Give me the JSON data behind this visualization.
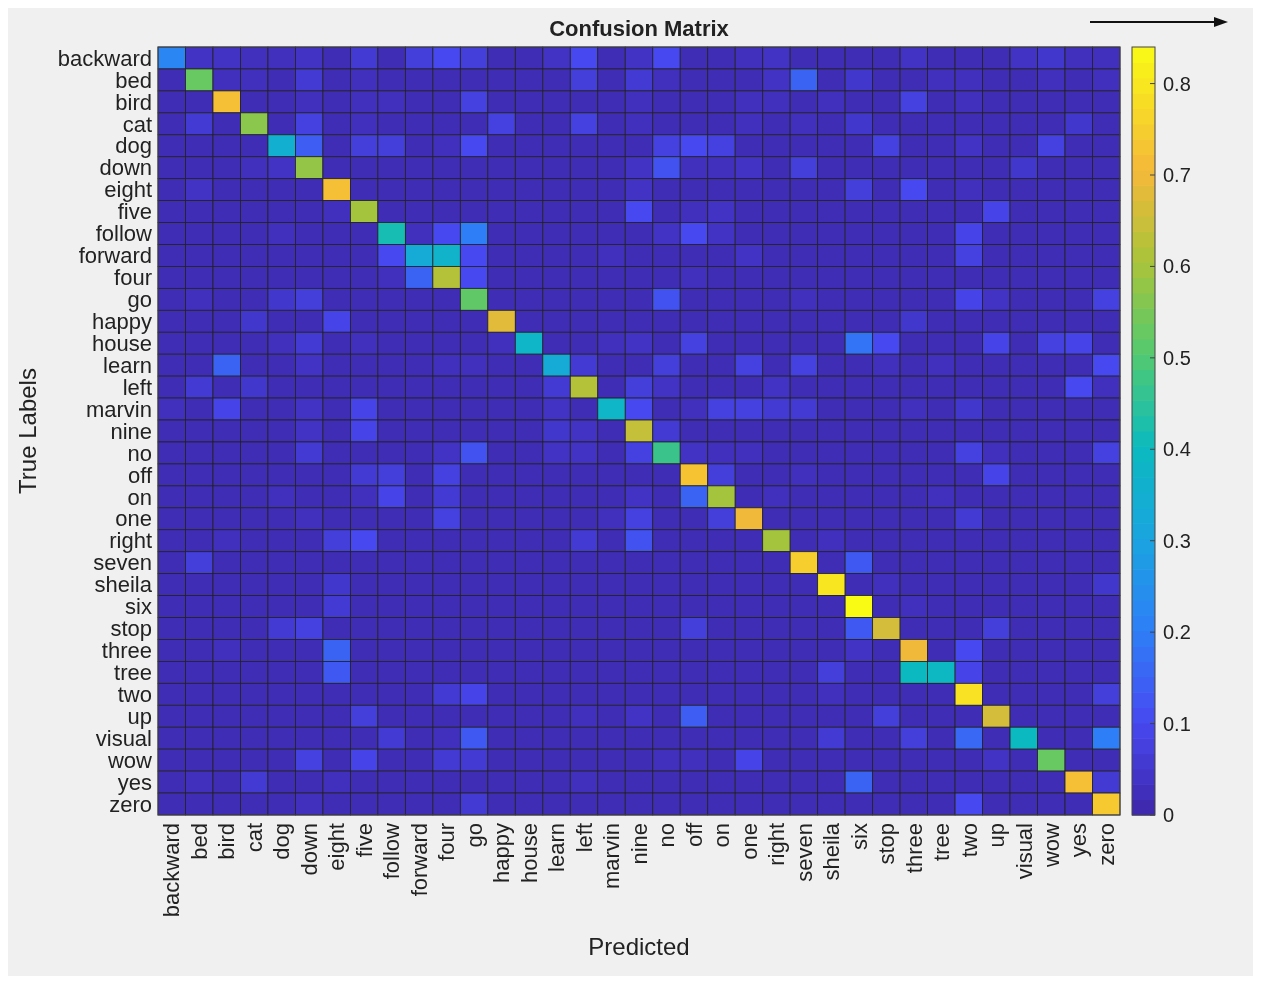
{
  "chart_data": {
    "type": "heatmap",
    "title": "Confusion Matrix",
    "xlabel": "Predicted",
    "ylabel": "True Labels",
    "categories": [
      "backward",
      "bed",
      "bird",
      "cat",
      "dog",
      "down",
      "eight",
      "five",
      "follow",
      "forward",
      "four",
      "go",
      "happy",
      "house",
      "learn",
      "left",
      "marvin",
      "nine",
      "no",
      "off",
      "on",
      "one",
      "right",
      "seven",
      "sheila",
      "six",
      "stop",
      "three",
      "tree",
      "two",
      "up",
      "visual",
      "wow",
      "yes",
      "zero"
    ],
    "y_categories": [
      "backward",
      "bed",
      "bird",
      "cat",
      "dog",
      "down",
      "eight",
      "five",
      "follow",
      "forward",
      "four",
      "go",
      "happy",
      "house",
      "learn",
      "left",
      "marvin",
      "nine",
      "no",
      "off",
      "on",
      "one",
      "right",
      "seven",
      "sheila",
      "six",
      "stop",
      "three",
      "tree",
      "two",
      "up",
      "visual",
      "wow",
      "yes",
      "zero"
    ],
    "clim": [
      0,
      0.84
    ],
    "cticks": [
      0,
      0.1,
      0.2,
      0.3,
      0.4,
      0.5,
      0.6,
      0.7,
      0.8
    ],
    "cells": [
      [
        0.22,
        0.04,
        0.04,
        0.03,
        0.03,
        0.04,
        0.02,
        0.06,
        0.02,
        0.07,
        0.1,
        0.07,
        0.02,
        0.02,
        0.04,
        0.1,
        0.02,
        0.04,
        0.1,
        0.02,
        0.02,
        0.03,
        0.04,
        0.02,
        0.02,
        0.02,
        0.02,
        0.04,
        0.02,
        0.02,
        0.02,
        0.04,
        0.05,
        0.03,
        0.03
      ],
      [
        0.02,
        0.53,
        0.03,
        0.03,
        0.02,
        0.06,
        0.02,
        0.03,
        0.02,
        0.02,
        0.02,
        0.02,
        0.02,
        0.02,
        0.02,
        0.07,
        0.02,
        0.06,
        0.03,
        0.02,
        0.02,
        0.02,
        0.04,
        0.15,
        0.02,
        0.05,
        0.02,
        0.02,
        0.03,
        0.03,
        0.02,
        0.02,
        0.03,
        0.02,
        0.03
      ],
      [
        0.02,
        0.02,
        0.72,
        0.02,
        0.02,
        0.03,
        0.02,
        0.03,
        0.03,
        0.02,
        0.02,
        0.08,
        0.02,
        0.02,
        0.02,
        0.02,
        0.02,
        0.03,
        0.02,
        0.02,
        0.02,
        0.03,
        0.03,
        0.02,
        0.03,
        0.02,
        0.02,
        0.08,
        0.02,
        0.03,
        0.02,
        0.02,
        0.02,
        0.02,
        0.02
      ],
      [
        0.02,
        0.06,
        0.02,
        0.57,
        0.02,
        0.08,
        0.02,
        0.03,
        0.02,
        0.02,
        0.02,
        0.02,
        0.08,
        0.02,
        0.02,
        0.08,
        0.02,
        0.03,
        0.02,
        0.02,
        0.02,
        0.03,
        0.02,
        0.03,
        0.02,
        0.05,
        0.02,
        0.02,
        0.02,
        0.02,
        0.02,
        0.02,
        0.02,
        0.05,
        0.02
      ],
      [
        0.02,
        0.02,
        0.02,
        0.02,
        0.35,
        0.14,
        0.02,
        0.07,
        0.07,
        0.02,
        0.03,
        0.1,
        0.02,
        0.02,
        0.02,
        0.02,
        0.02,
        0.02,
        0.08,
        0.1,
        0.08,
        0.02,
        0.02,
        0.02,
        0.02,
        0.02,
        0.08,
        0.02,
        0.02,
        0.04,
        0.02,
        0.02,
        0.08,
        0.02,
        0.02
      ],
      [
        0.02,
        0.02,
        0.02,
        0.03,
        0.04,
        0.58,
        0.02,
        0.02,
        0.02,
        0.02,
        0.02,
        0.02,
        0.02,
        0.02,
        0.02,
        0.02,
        0.02,
        0.04,
        0.12,
        0.03,
        0.03,
        0.04,
        0.02,
        0.07,
        0.02,
        0.02,
        0.02,
        0.02,
        0.02,
        0.02,
        0.02,
        0.05,
        0.02,
        0.02,
        0.02
      ],
      [
        0.02,
        0.04,
        0.02,
        0.02,
        0.02,
        0.02,
        0.72,
        0.02,
        0.02,
        0.02,
        0.02,
        0.02,
        0.02,
        0.02,
        0.02,
        0.02,
        0.02,
        0.04,
        0.02,
        0.02,
        0.02,
        0.02,
        0.02,
        0.02,
        0.02,
        0.07,
        0.02,
        0.1,
        0.02,
        0.03,
        0.02,
        0.02,
        0.02,
        0.02,
        0.02
      ],
      [
        0.02,
        0.02,
        0.02,
        0.02,
        0.02,
        0.02,
        0.03,
        0.6,
        0.02,
        0.02,
        0.02,
        0.02,
        0.02,
        0.02,
        0.02,
        0.02,
        0.02,
        0.1,
        0.02,
        0.03,
        0.04,
        0.02,
        0.02,
        0.02,
        0.02,
        0.02,
        0.02,
        0.02,
        0.02,
        0.02,
        0.09,
        0.02,
        0.02,
        0.02,
        0.02
      ],
      [
        0.02,
        0.02,
        0.02,
        0.02,
        0.03,
        0.02,
        0.02,
        0.02,
        0.42,
        0.03,
        0.1,
        0.2,
        0.02,
        0.02,
        0.02,
        0.02,
        0.02,
        0.02,
        0.04,
        0.1,
        0.04,
        0.02,
        0.02,
        0.02,
        0.02,
        0.02,
        0.02,
        0.02,
        0.02,
        0.09,
        0.02,
        0.02,
        0.02,
        0.02,
        0.02
      ],
      [
        0.02,
        0.02,
        0.02,
        0.02,
        0.02,
        0.02,
        0.02,
        0.02,
        0.1,
        0.33,
        0.37,
        0.1,
        0.02,
        0.02,
        0.02,
        0.02,
        0.03,
        0.02,
        0.02,
        0.02,
        0.02,
        0.04,
        0.02,
        0.02,
        0.02,
        0.02,
        0.02,
        0.02,
        0.02,
        0.08,
        0.02,
        0.02,
        0.02,
        0.02,
        0.02
      ],
      [
        0.02,
        0.02,
        0.02,
        0.02,
        0.02,
        0.02,
        0.02,
        0.02,
        0.03,
        0.15,
        0.62,
        0.1,
        0.02,
        0.02,
        0.02,
        0.02,
        0.02,
        0.02,
        0.02,
        0.03,
        0.02,
        0.02,
        0.02,
        0.02,
        0.02,
        0.02,
        0.02,
        0.02,
        0.02,
        0.02,
        0.02,
        0.02,
        0.02,
        0.02,
        0.02
      ],
      [
        0.02,
        0.03,
        0.02,
        0.02,
        0.05,
        0.07,
        0.02,
        0.02,
        0.02,
        0.02,
        0.02,
        0.52,
        0.02,
        0.02,
        0.02,
        0.02,
        0.02,
        0.02,
        0.12,
        0.02,
        0.02,
        0.02,
        0.02,
        0.03,
        0.02,
        0.02,
        0.02,
        0.02,
        0.02,
        0.09,
        0.04,
        0.02,
        0.02,
        0.02,
        0.08
      ],
      [
        0.02,
        0.02,
        0.02,
        0.05,
        0.02,
        0.02,
        0.09,
        0.02,
        0.02,
        0.02,
        0.02,
        0.02,
        0.68,
        0.02,
        0.02,
        0.02,
        0.02,
        0.02,
        0.02,
        0.02,
        0.02,
        0.02,
        0.02,
        0.02,
        0.02,
        0.02,
        0.02,
        0.05,
        0.02,
        0.02,
        0.02,
        0.02,
        0.02,
        0.02,
        0.02
      ],
      [
        0.02,
        0.02,
        0.02,
        0.02,
        0.03,
        0.06,
        0.02,
        0.03,
        0.02,
        0.02,
        0.02,
        0.02,
        0.03,
        0.38,
        0.02,
        0.02,
        0.03,
        0.04,
        0.02,
        0.08,
        0.02,
        0.02,
        0.02,
        0.02,
        0.02,
        0.18,
        0.1,
        0.02,
        0.02,
        0.02,
        0.09,
        0.02,
        0.08,
        0.09,
        0.02
      ],
      [
        0.02,
        0.02,
        0.15,
        0.02,
        0.02,
        0.04,
        0.02,
        0.02,
        0.02,
        0.02,
        0.03,
        0.03,
        0.02,
        0.02,
        0.33,
        0.06,
        0.02,
        0.02,
        0.07,
        0.02,
        0.02,
        0.08,
        0.02,
        0.08,
        0.02,
        0.02,
        0.03,
        0.02,
        0.03,
        0.02,
        0.02,
        0.02,
        0.02,
        0.02,
        0.1
      ],
      [
        0.02,
        0.06,
        0.02,
        0.05,
        0.02,
        0.02,
        0.02,
        0.02,
        0.02,
        0.02,
        0.02,
        0.02,
        0.02,
        0.02,
        0.06,
        0.62,
        0.02,
        0.07,
        0.04,
        0.02,
        0.02,
        0.02,
        0.04,
        0.02,
        0.02,
        0.02,
        0.02,
        0.02,
        0.02,
        0.02,
        0.02,
        0.02,
        0.02,
        0.1,
        0.03
      ],
      [
        0.03,
        0.02,
        0.09,
        0.02,
        0.02,
        0.04,
        0.02,
        0.09,
        0.02,
        0.02,
        0.02,
        0.02,
        0.02,
        0.02,
        0.04,
        0.02,
        0.38,
        0.1,
        0.02,
        0.03,
        0.08,
        0.08,
        0.06,
        0.06,
        0.02,
        0.02,
        0.02,
        0.03,
        0.02,
        0.05,
        0.02,
        0.02,
        0.02,
        0.02,
        0.02
      ],
      [
        0.02,
        0.02,
        0.02,
        0.02,
        0.02,
        0.04,
        0.02,
        0.09,
        0.02,
        0.02,
        0.02,
        0.02,
        0.02,
        0.02,
        0.05,
        0.04,
        0.02,
        0.64,
        0.06,
        0.02,
        0.02,
        0.02,
        0.02,
        0.02,
        0.02,
        0.02,
        0.02,
        0.02,
        0.02,
        0.02,
        0.02,
        0.02,
        0.02,
        0.02,
        0.02
      ],
      [
        0.02,
        0.02,
        0.02,
        0.02,
        0.02,
        0.06,
        0.02,
        0.02,
        0.02,
        0.02,
        0.04,
        0.12,
        0.02,
        0.02,
        0.04,
        0.04,
        0.02,
        0.08,
        0.47,
        0.04,
        0.03,
        0.03,
        0.02,
        0.02,
        0.02,
        0.02,
        0.02,
        0.02,
        0.02,
        0.08,
        0.03,
        0.02,
        0.02,
        0.02,
        0.08
      ],
      [
        0.02,
        0.02,
        0.02,
        0.02,
        0.02,
        0.02,
        0.02,
        0.06,
        0.07,
        0.02,
        0.08,
        0.02,
        0.02,
        0.02,
        0.02,
        0.02,
        0.02,
        0.02,
        0.02,
        0.73,
        0.07,
        0.02,
        0.02,
        0.03,
        0.02,
        0.02,
        0.02,
        0.02,
        0.02,
        0.02,
        0.09,
        0.02,
        0.02,
        0.02,
        0.02
      ],
      [
        0.02,
        0.02,
        0.02,
        0.02,
        0.03,
        0.02,
        0.02,
        0.03,
        0.09,
        0.02,
        0.06,
        0.02,
        0.02,
        0.02,
        0.02,
        0.02,
        0.02,
        0.04,
        0.02,
        0.15,
        0.6,
        0.02,
        0.03,
        0.02,
        0.02,
        0.02,
        0.02,
        0.02,
        0.03,
        0.02,
        0.02,
        0.02,
        0.02,
        0.02,
        0.02
      ],
      [
        0.02,
        0.02,
        0.02,
        0.02,
        0.02,
        0.03,
        0.02,
        0.02,
        0.02,
        0.02,
        0.08,
        0.02,
        0.02,
        0.02,
        0.02,
        0.02,
        0.03,
        0.08,
        0.02,
        0.02,
        0.07,
        0.7,
        0.02,
        0.02,
        0.02,
        0.02,
        0.02,
        0.02,
        0.02,
        0.06,
        0.02,
        0.02,
        0.02,
        0.02,
        0.02
      ],
      [
        0.02,
        0.02,
        0.03,
        0.02,
        0.02,
        0.02,
        0.07,
        0.1,
        0.02,
        0.02,
        0.02,
        0.02,
        0.02,
        0.02,
        0.02,
        0.06,
        0.02,
        0.12,
        0.02,
        0.02,
        0.02,
        0.02,
        0.6,
        0.02,
        0.03,
        0.02,
        0.02,
        0.02,
        0.02,
        0.02,
        0.02,
        0.02,
        0.02,
        0.02,
        0.02
      ],
      [
        0.02,
        0.07,
        0.02,
        0.02,
        0.02,
        0.02,
        0.02,
        0.02,
        0.02,
        0.02,
        0.02,
        0.02,
        0.02,
        0.02,
        0.02,
        0.02,
        0.02,
        0.02,
        0.02,
        0.02,
        0.02,
        0.02,
        0.02,
        0.75,
        0.02,
        0.13,
        0.02,
        0.02,
        0.02,
        0.02,
        0.02,
        0.02,
        0.02,
        0.02,
        0.02
      ],
      [
        0.02,
        0.02,
        0.02,
        0.02,
        0.02,
        0.02,
        0.05,
        0.02,
        0.02,
        0.02,
        0.02,
        0.02,
        0.02,
        0.02,
        0.02,
        0.02,
        0.02,
        0.02,
        0.02,
        0.02,
        0.02,
        0.02,
        0.02,
        0.02,
        0.8,
        0.02,
        0.03,
        0.02,
        0.02,
        0.02,
        0.02,
        0.02,
        0.02,
        0.02,
        0.05
      ],
      [
        0.02,
        0.02,
        0.02,
        0.02,
        0.02,
        0.02,
        0.06,
        0.02,
        0.02,
        0.02,
        0.02,
        0.02,
        0.02,
        0.02,
        0.02,
        0.02,
        0.02,
        0.02,
        0.02,
        0.02,
        0.02,
        0.02,
        0.02,
        0.02,
        0.02,
        0.84,
        0.02,
        0.03,
        0.02,
        0.02,
        0.02,
        0.02,
        0.02,
        0.02,
        0.02
      ],
      [
        0.02,
        0.02,
        0.02,
        0.02,
        0.06,
        0.08,
        0.02,
        0.02,
        0.02,
        0.02,
        0.02,
        0.02,
        0.02,
        0.02,
        0.02,
        0.02,
        0.02,
        0.02,
        0.02,
        0.07,
        0.02,
        0.02,
        0.02,
        0.02,
        0.02,
        0.13,
        0.66,
        0.02,
        0.02,
        0.02,
        0.07,
        0.02,
        0.02,
        0.02,
        0.02
      ],
      [
        0.02,
        0.02,
        0.03,
        0.02,
        0.02,
        0.02,
        0.15,
        0.02,
        0.02,
        0.02,
        0.02,
        0.02,
        0.02,
        0.02,
        0.02,
        0.02,
        0.02,
        0.02,
        0.02,
        0.02,
        0.02,
        0.02,
        0.02,
        0.02,
        0.02,
        0.04,
        0.02,
        0.7,
        0.02,
        0.1,
        0.02,
        0.02,
        0.02,
        0.02,
        0.02
      ],
      [
        0.02,
        0.02,
        0.02,
        0.02,
        0.02,
        0.02,
        0.13,
        0.02,
        0.02,
        0.02,
        0.02,
        0.02,
        0.02,
        0.02,
        0.02,
        0.02,
        0.02,
        0.02,
        0.02,
        0.02,
        0.02,
        0.02,
        0.02,
        0.02,
        0.07,
        0.02,
        0.02,
        0.4,
        0.39,
        0.09,
        0.02,
        0.02,
        0.02,
        0.02,
        0.02
      ],
      [
        0.02,
        0.02,
        0.02,
        0.02,
        0.02,
        0.02,
        0.02,
        0.02,
        0.02,
        0.02,
        0.06,
        0.09,
        0.02,
        0.02,
        0.02,
        0.02,
        0.02,
        0.02,
        0.02,
        0.02,
        0.02,
        0.02,
        0.02,
        0.02,
        0.03,
        0.02,
        0.02,
        0.02,
        0.02,
        0.79,
        0.02,
        0.02,
        0.02,
        0.02,
        0.07
      ],
      [
        0.02,
        0.02,
        0.02,
        0.02,
        0.02,
        0.02,
        0.02,
        0.07,
        0.02,
        0.02,
        0.02,
        0.02,
        0.02,
        0.02,
        0.02,
        0.03,
        0.02,
        0.04,
        0.02,
        0.14,
        0.02,
        0.02,
        0.02,
        0.02,
        0.02,
        0.02,
        0.07,
        0.02,
        0.02,
        0.02,
        0.66,
        0.02,
        0.02,
        0.02,
        0.02
      ],
      [
        0.02,
        0.02,
        0.02,
        0.02,
        0.02,
        0.02,
        0.02,
        0.02,
        0.06,
        0.02,
        0.03,
        0.13,
        0.02,
        0.02,
        0.02,
        0.02,
        0.02,
        0.02,
        0.02,
        0.02,
        0.02,
        0.02,
        0.02,
        0.02,
        0.06,
        0.02,
        0.02,
        0.07,
        0.02,
        0.16,
        0.02,
        0.4,
        0.02,
        0.02,
        0.2
      ],
      [
        0.02,
        0.02,
        0.02,
        0.02,
        0.02,
        0.08,
        0.02,
        0.09,
        0.02,
        0.02,
        0.06,
        0.06,
        0.02,
        0.02,
        0.02,
        0.02,
        0.02,
        0.02,
        0.03,
        0.03,
        0.02,
        0.09,
        0.02,
        0.02,
        0.02,
        0.02,
        0.02,
        0.02,
        0.02,
        0.02,
        0.04,
        0.02,
        0.53,
        0.02,
        0.02
      ],
      [
        0.02,
        0.03,
        0.02,
        0.06,
        0.02,
        0.02,
        0.03,
        0.02,
        0.02,
        0.02,
        0.02,
        0.02,
        0.02,
        0.02,
        0.02,
        0.03,
        0.02,
        0.02,
        0.02,
        0.02,
        0.02,
        0.02,
        0.02,
        0.02,
        0.02,
        0.15,
        0.02,
        0.02,
        0.02,
        0.02,
        0.02,
        0.02,
        0.02,
        0.72,
        0.06
      ],
      [
        0.02,
        0.02,
        0.02,
        0.02,
        0.02,
        0.03,
        0.02,
        0.02,
        0.02,
        0.02,
        0.02,
        0.06,
        0.02,
        0.02,
        0.02,
        0.02,
        0.02,
        0.02,
        0.02,
        0.02,
        0.02,
        0.02,
        0.02,
        0.02,
        0.02,
        0.02,
        0.02,
        0.02,
        0.02,
        0.1,
        0.02,
        0.02,
        0.02,
        0.02,
        0.74
      ]
    ]
  }
}
